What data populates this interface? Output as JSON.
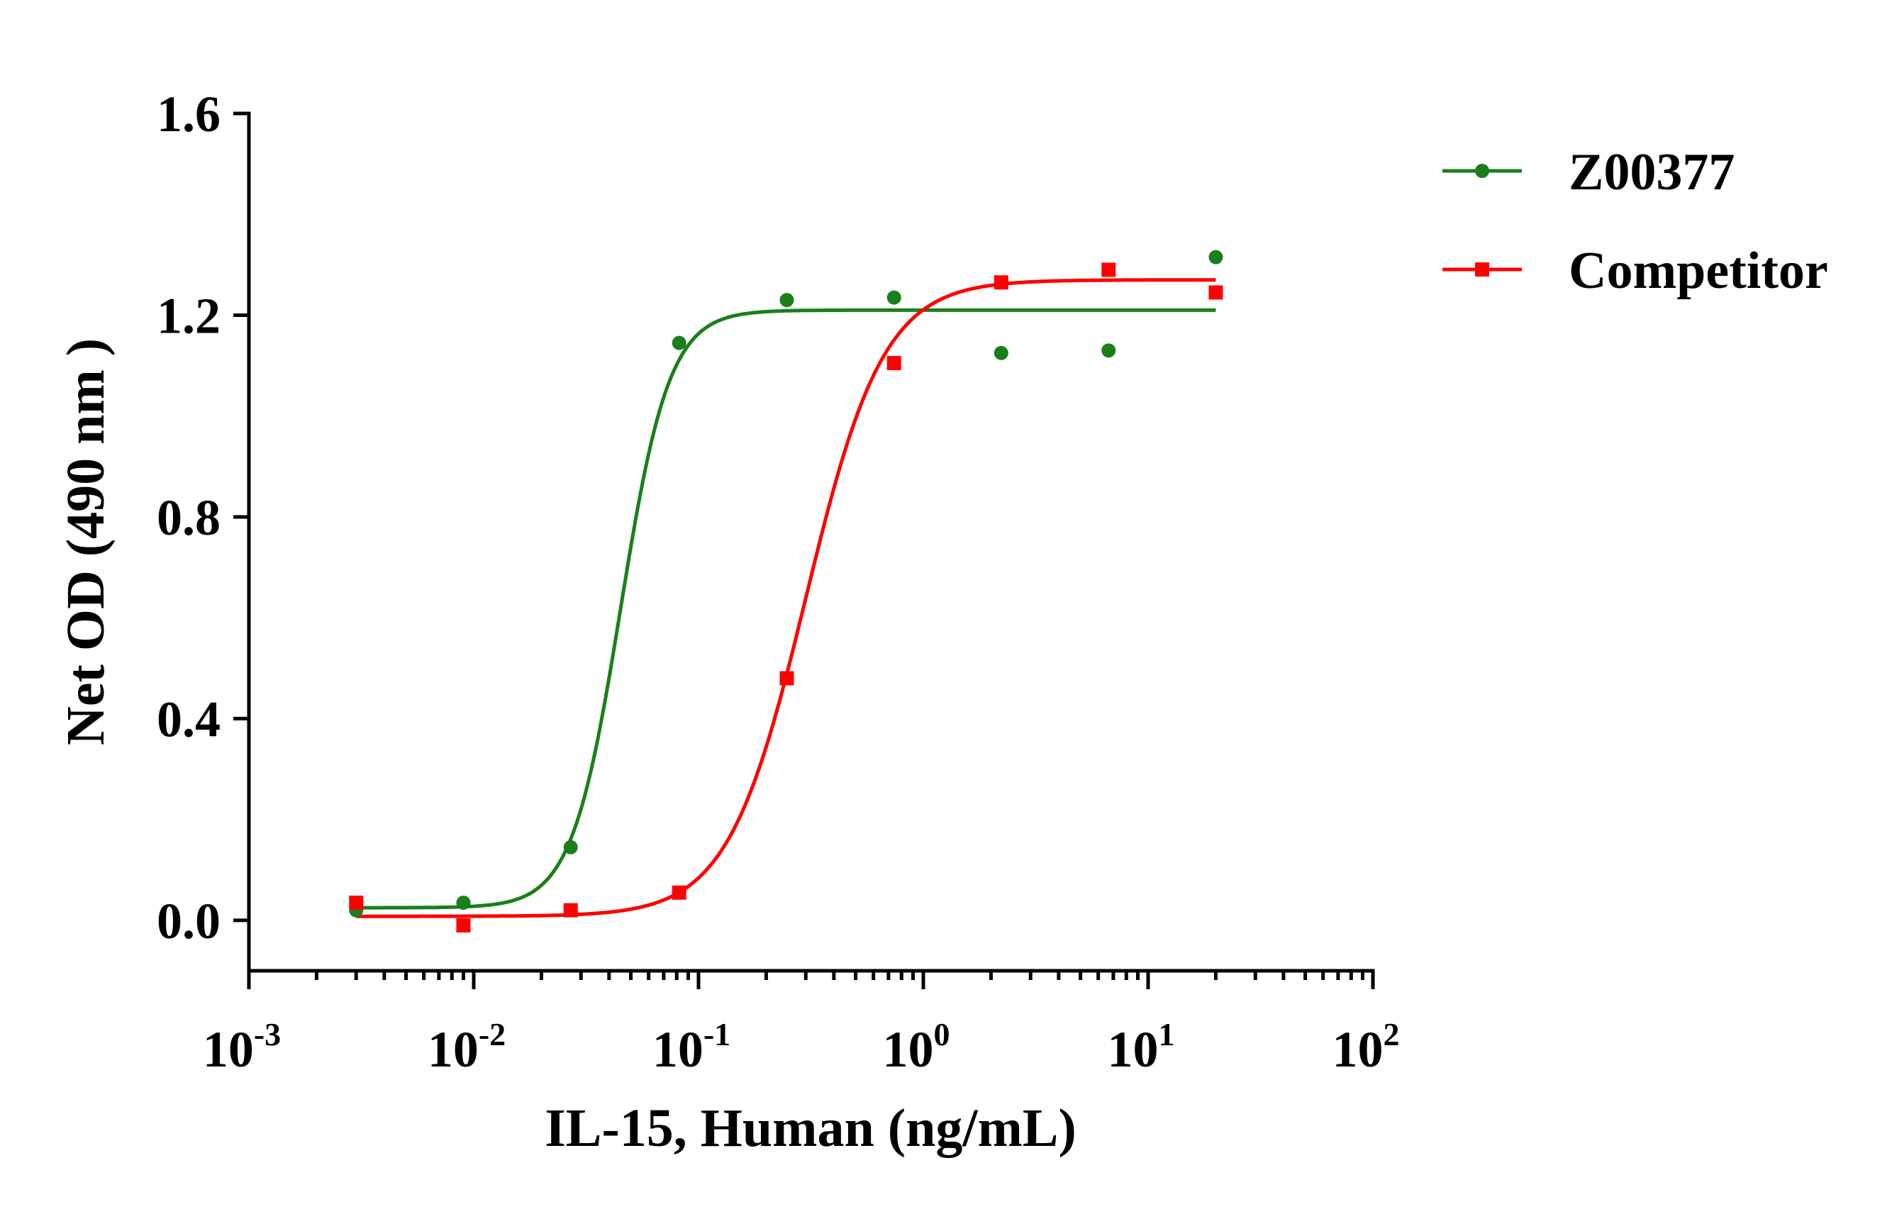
{
  "chart_data": {
    "type": "scatter",
    "xlabel": "IL-15, Human (ng/mL)",
    "ylabel": "Net OD (490 nm )",
    "x_scale": "log10",
    "xlim": [
      0.001,
      100
    ],
    "ylim": [
      -0.1,
      1.6
    ],
    "x_ticks": [
      {
        "base": "10",
        "exp": "-3"
      },
      {
        "base": "10",
        "exp": "-2"
      },
      {
        "base": "10",
        "exp": "-1"
      },
      {
        "base": "10",
        "exp": "0"
      },
      {
        "base": "10",
        "exp": "1"
      },
      {
        "base": "10",
        "exp": "2"
      }
    ],
    "y_ticks": [
      "0.0",
      "0.4",
      "0.8",
      "1.2",
      "1.6"
    ],
    "grid": false,
    "legend_position": "top-right",
    "series": [
      {
        "name": "Z00377",
        "color": "#1a7f1a",
        "marker": "circle",
        "x": [
          0.003,
          0.009,
          0.027,
          0.082,
          0.247,
          0.741,
          2.22,
          6.67,
          20.0
        ],
        "y": [
          0.02,
          0.035,
          0.145,
          1.145,
          1.23,
          1.235,
          1.125,
          1.13,
          1.315
        ],
        "fit": {
          "bottom": 0.025,
          "top": 1.21,
          "ec50": 0.045,
          "hill": 4.0
        }
      },
      {
        "name": "Competitor",
        "color": "#ff0000",
        "marker": "square",
        "x": [
          0.003,
          0.009,
          0.027,
          0.082,
          0.247,
          0.741,
          2.22,
          6.67,
          20.0
        ],
        "y": [
          0.035,
          -0.01,
          0.02,
          0.055,
          0.48,
          1.105,
          1.265,
          1.29,
          1.245
        ],
        "fit": {
          "bottom": 0.008,
          "top": 1.27,
          "ec50": 0.3,
          "hill": 2.5
        }
      }
    ]
  }
}
